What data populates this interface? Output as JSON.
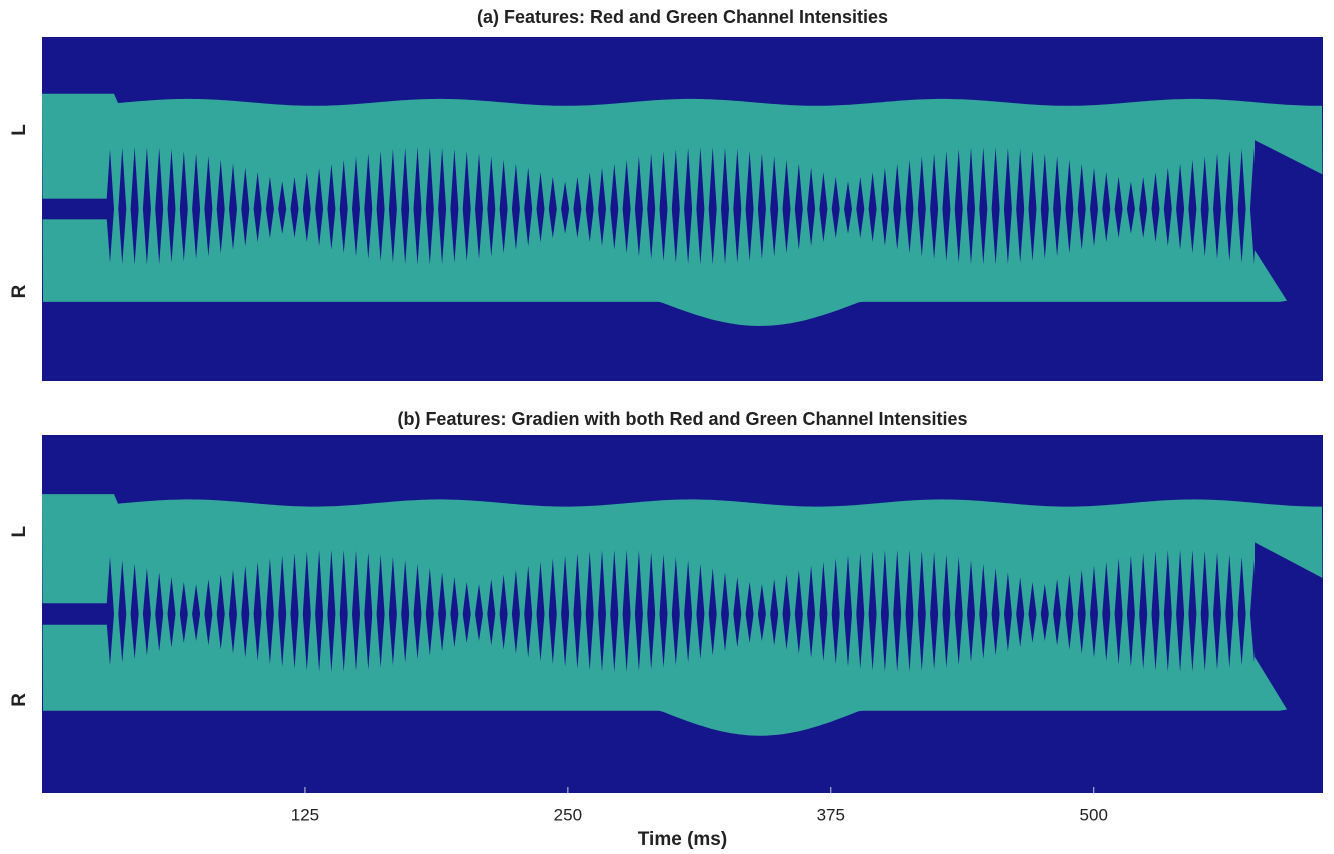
{
  "chart_data": [
    {
      "type": "kymograph",
      "title": "(a)  Features: Red and Green Channel Intensities",
      "categories": [
        "L",
        "R"
      ]
    },
    {
      "type": "kymograph",
      "title": "(b)  Features: Gradien with both Red and Green Channel Intensities",
      "categories": [
        "L",
        "R"
      ],
      "xlabel": "Time (ms)",
      "xlim": [
        0,
        609
      ],
      "xticks": [
        125,
        250,
        375,
        500
      ]
    }
  ]
}
